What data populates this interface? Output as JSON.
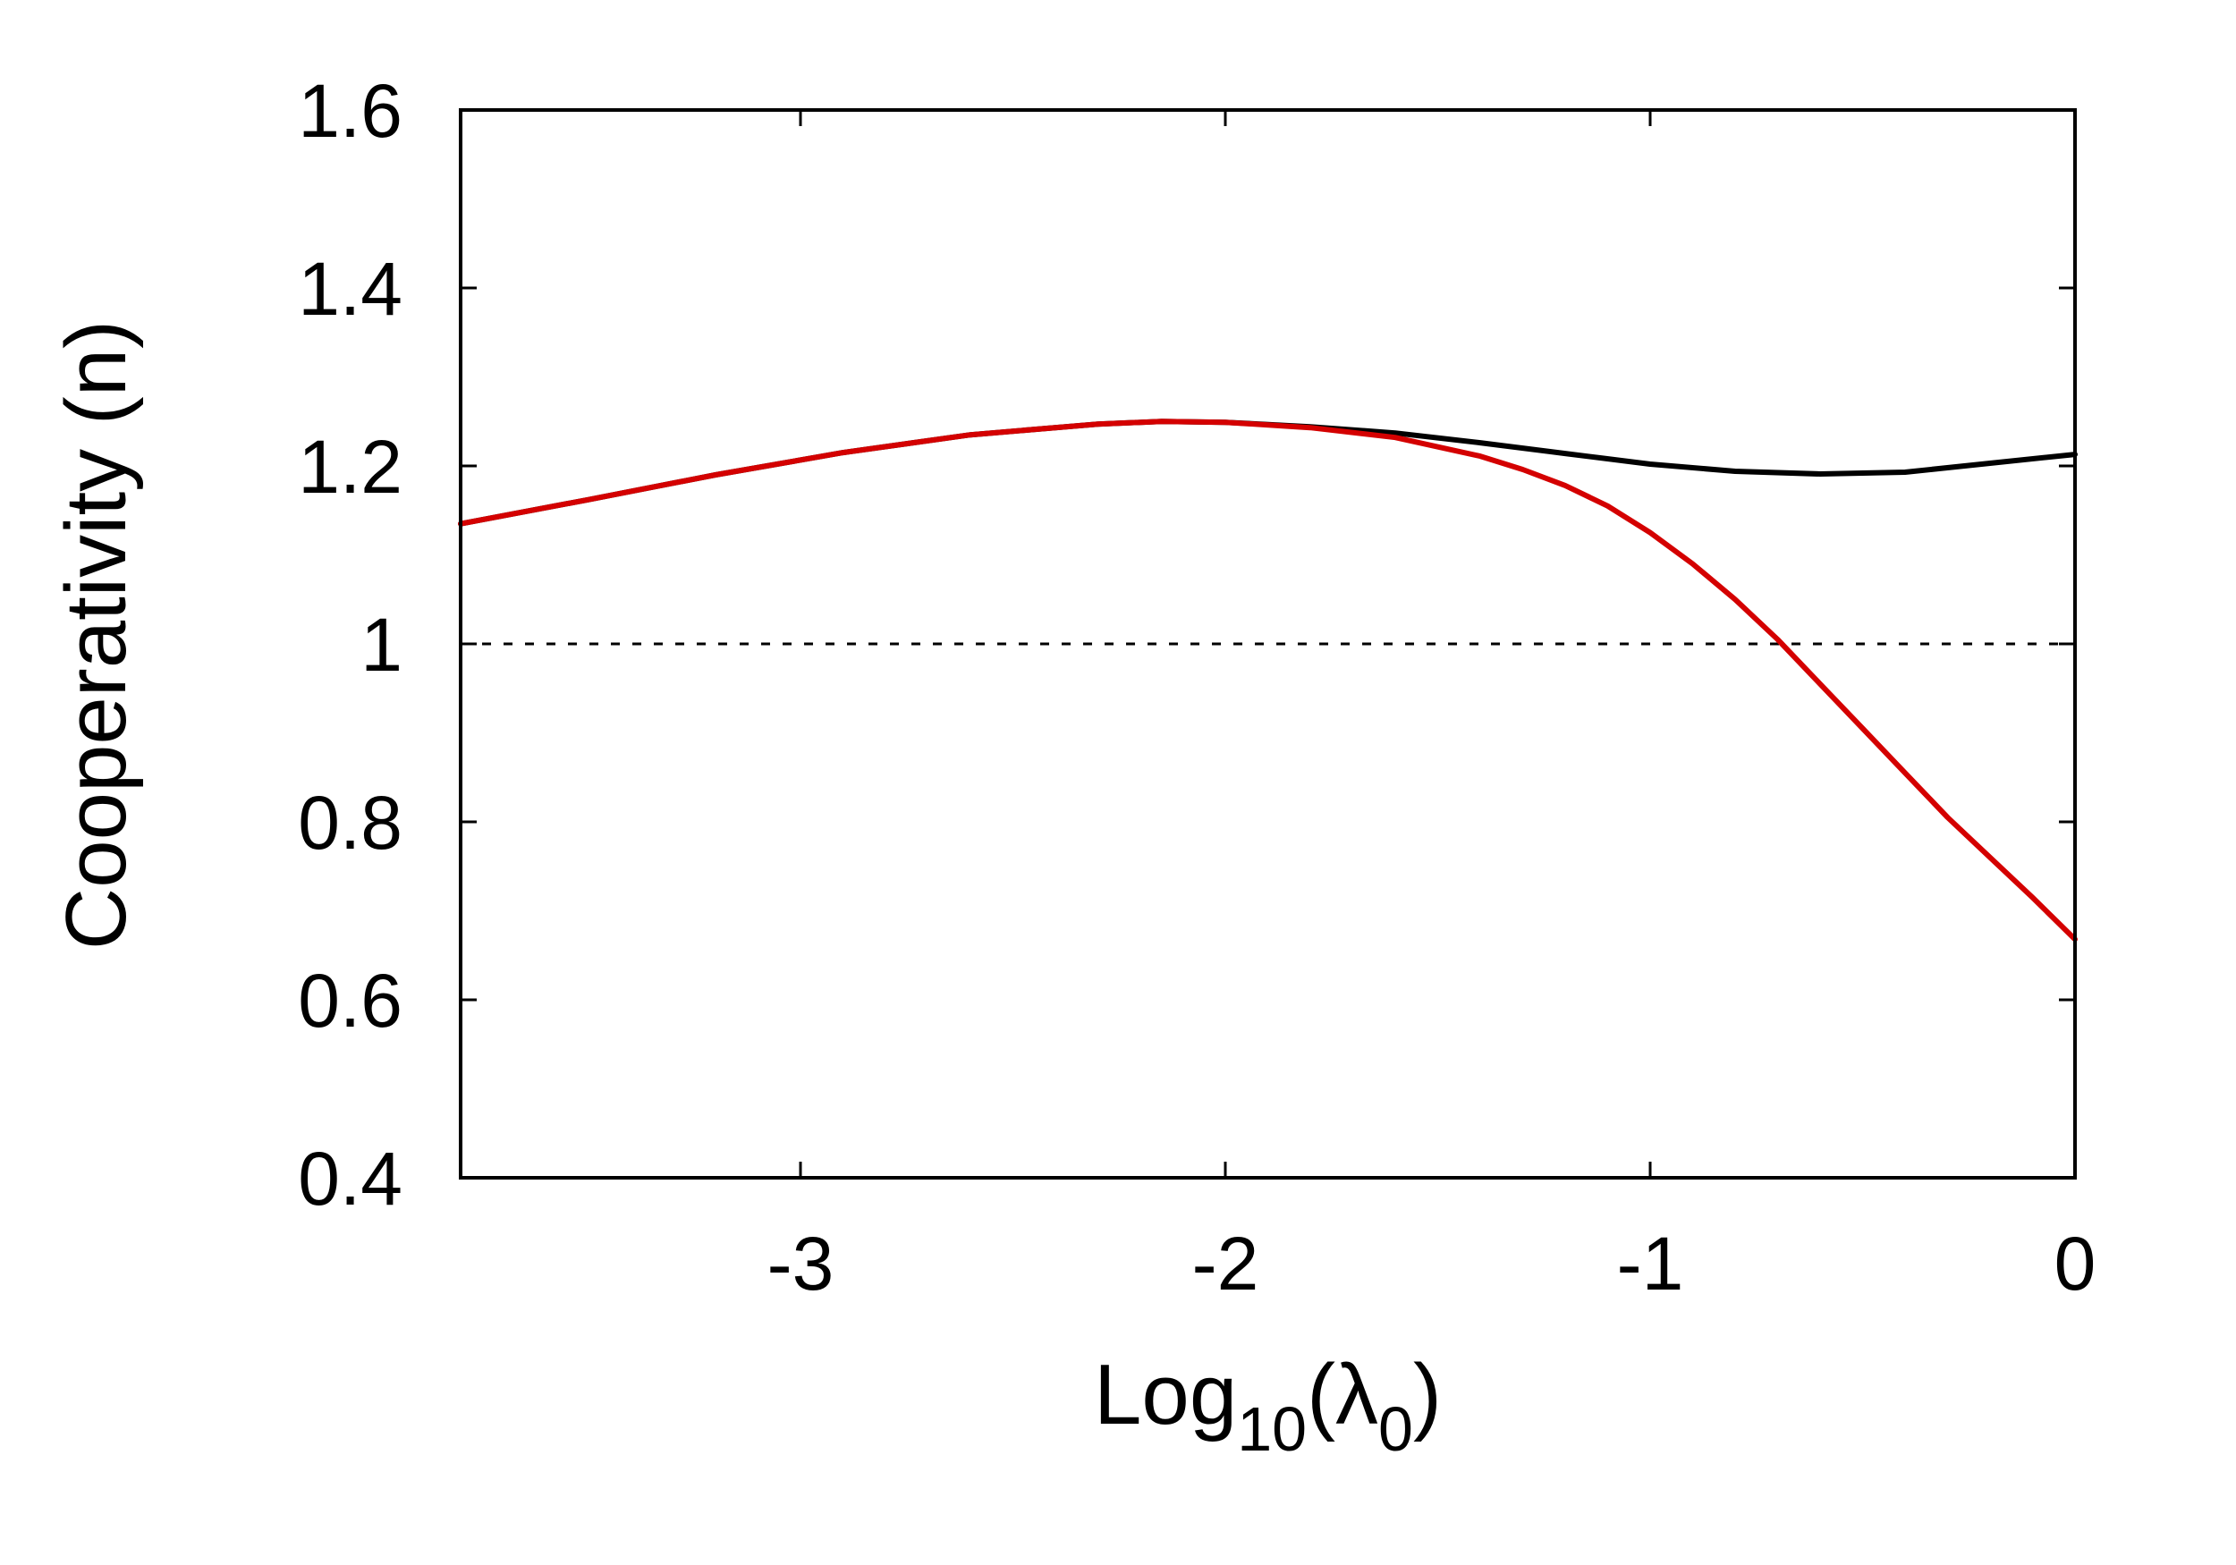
{
  "chart_data": {
    "type": "line",
    "xlabel": {
      "base": "Log",
      "sub1": "10",
      "mid": "(λ",
      "sub2": "0",
      "end": ")"
    },
    "ylabel": "Cooperativity (n)",
    "xlim": [
      -3.8,
      0
    ],
    "ylim": [
      0.4,
      1.6
    ],
    "x_ticks": [
      -3,
      -2,
      -1,
      0
    ],
    "x_tick_labels": [
      "-3",
      "-2",
      "-1",
      "0"
    ],
    "y_ticks": [
      0.4,
      0.6,
      0.8,
      1.0,
      1.2,
      1.4,
      1.6
    ],
    "y_tick_labels": [
      "0.4",
      "0.6",
      "0.8",
      "1",
      "1.2",
      "1.4",
      "1.6"
    ],
    "grid": false,
    "reference_line": {
      "y": 1.0,
      "style": "dashed",
      "color": "#000000"
    },
    "series": [
      {
        "color": "#000000",
        "x": [
          -3.8,
          -3.5,
          -3.2,
          -2.9,
          -2.6,
          -2.3,
          -2.15,
          -2.0,
          -1.8,
          -1.6,
          -1.4,
          -1.2,
          -1.0,
          -0.8,
          -0.6,
          -0.4,
          -0.2,
          0.0
        ],
        "y": [
          1.135,
          1.162,
          1.19,
          1.215,
          1.235,
          1.247,
          1.25,
          1.249,
          1.244,
          1.237,
          1.226,
          1.214,
          1.202,
          1.194,
          1.191,
          1.193,
          1.203,
          1.213
        ]
      },
      {
        "color": "#d40000",
        "x": [
          -3.8,
          -3.5,
          -3.2,
          -2.9,
          -2.6,
          -2.3,
          -2.15,
          -2.0,
          -1.8,
          -1.6,
          -1.4,
          -1.3,
          -1.2,
          -1.1,
          -1.0,
          -0.9,
          -0.8,
          -0.7,
          -0.6,
          -0.5,
          -0.4,
          -0.3,
          -0.2,
          -0.1,
          0.0
        ],
        "y": [
          1.135,
          1.162,
          1.19,
          1.215,
          1.235,
          1.247,
          1.25,
          1.249,
          1.243,
          1.232,
          1.211,
          1.196,
          1.178,
          1.155,
          1.125,
          1.09,
          1.05,
          1.005,
          0.955,
          0.905,
          0.855,
          0.805,
          0.76,
          0.715,
          0.668
        ]
      }
    ]
  }
}
